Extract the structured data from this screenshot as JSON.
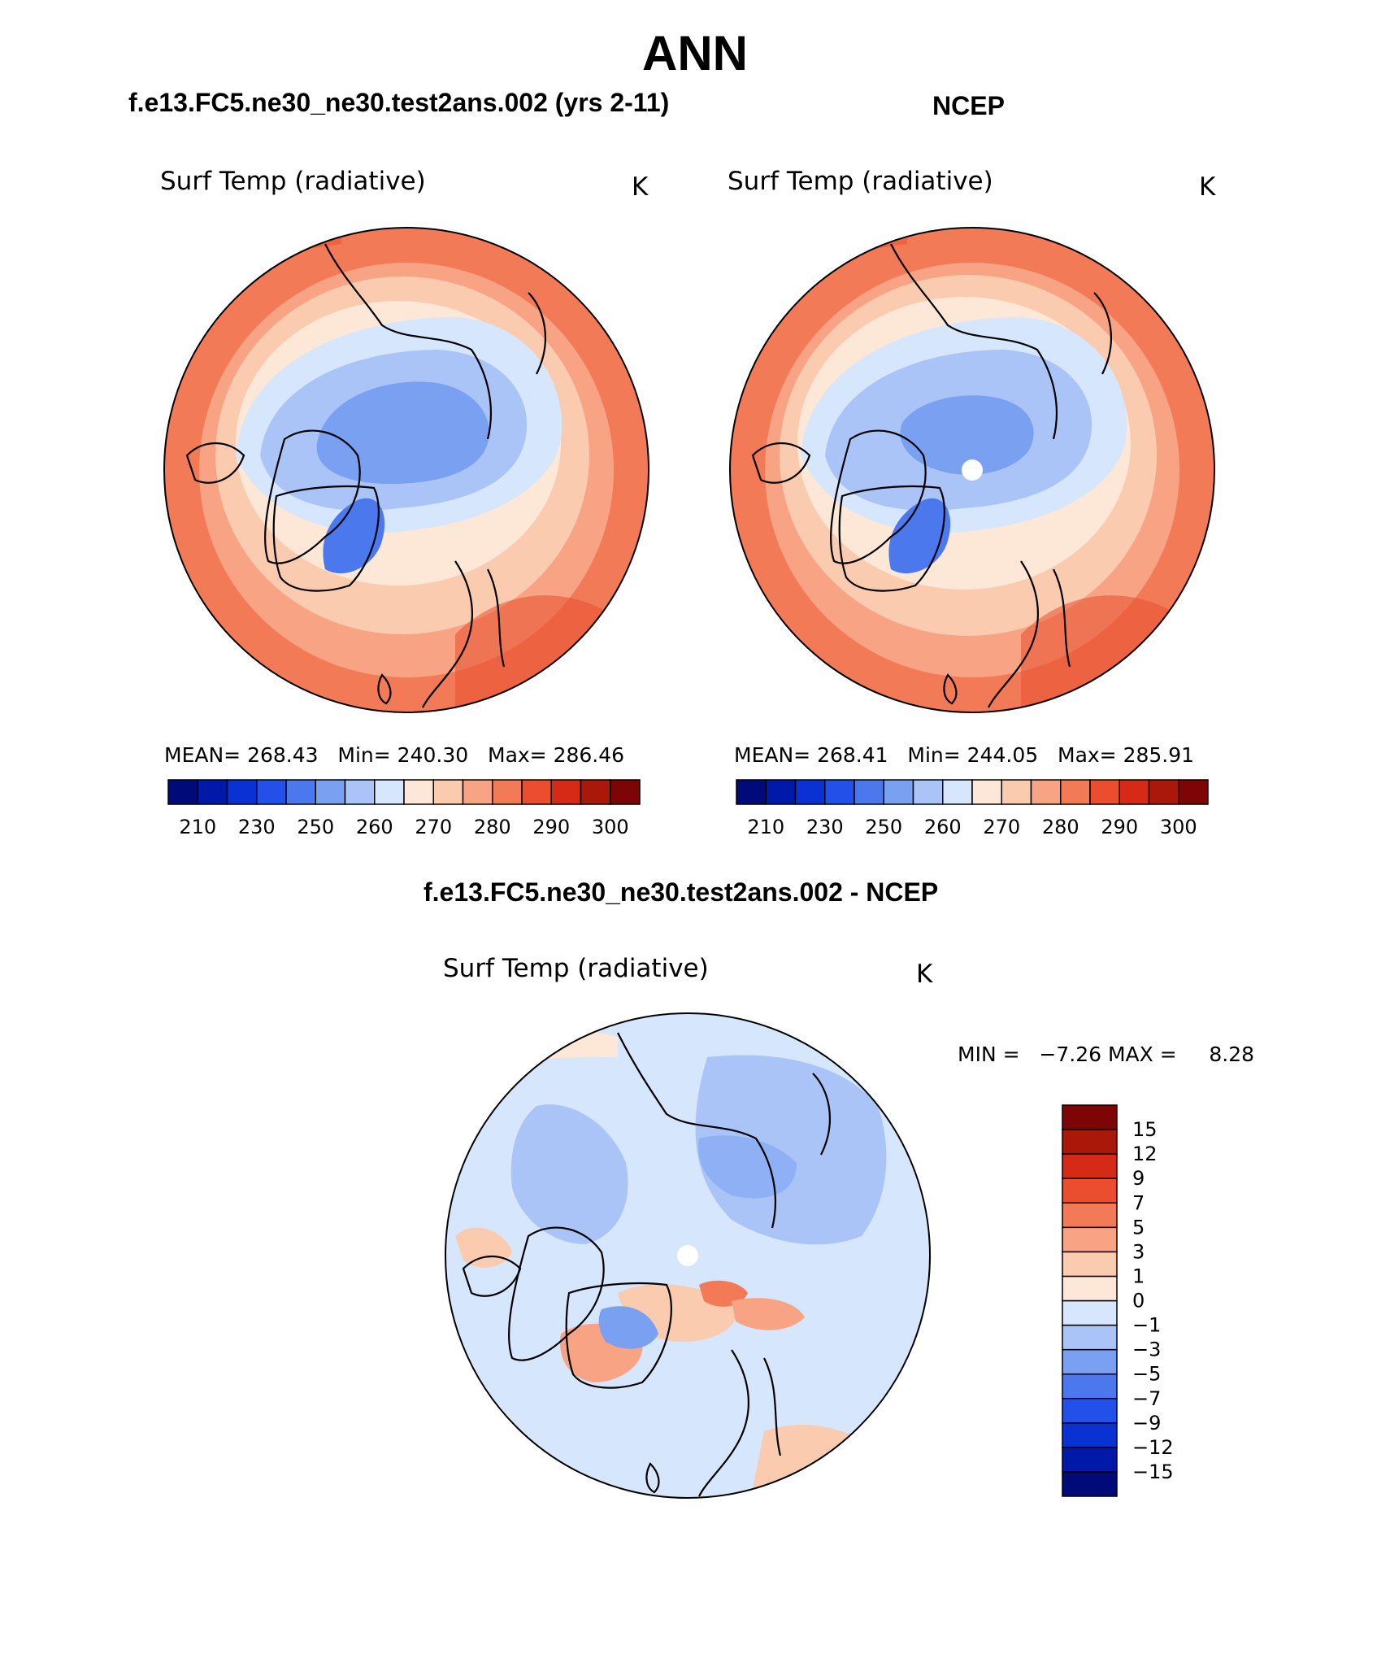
{
  "title": "ANN",
  "panels": [
    {
      "case": "f.e13.FC5.ne30_ne30.test2ans.002 (yrs 2-11)",
      "variable": "Surf Temp (radiative)",
      "units": "K",
      "stats": {
        "mean_label": "MEAN=",
        "mean": "268.43",
        "min_label": "Min=",
        "min": "240.30",
        "max_label": "Max=",
        "max": "286.46"
      }
    },
    {
      "case": "NCEP",
      "variable": "Surf Temp (radiative)",
      "units": "K",
      "stats": {
        "mean_label": "MEAN=",
        "mean": "268.41",
        "min_label": "Min=",
        "min": "244.05",
        "max_label": "Max=",
        "max": "285.91"
      }
    }
  ],
  "diff_panel": {
    "case": "f.e13.FC5.ne30_ne30.test2ans.002 - NCEP",
    "variable": "Surf Temp (radiative)",
    "units": "K",
    "min_label": "MIN =",
    "min": "−7.26",
    "max_label": "MAX =",
    "max": "8.28"
  },
  "abs_colorbar": {
    "colors": [
      "#000a78",
      "#0019a8",
      "#0a32d2",
      "#2350e8",
      "#4c78ee",
      "#7aa0f2",
      "#aac4f8",
      "#d6e6fc",
      "#fde7d7",
      "#fbcbb0",
      "#f7a384",
      "#f27a57",
      "#ea4e2e",
      "#d52a16",
      "#aa180a",
      "#7d0505"
    ],
    "tick_labels": [
      "210",
      "230",
      "250",
      "260",
      "270",
      "280",
      "290",
      "300"
    ]
  },
  "diff_colorbar": {
    "colors": [
      "#000a78",
      "#0019a8",
      "#0a32d2",
      "#2350e8",
      "#4c78ee",
      "#7aa0f2",
      "#aac4f8",
      "#d6e6fc",
      "#fde7d7",
      "#fbcbb0",
      "#f7a384",
      "#f27a57",
      "#ea4e2e",
      "#d52a16",
      "#aa180a",
      "#7d0505"
    ],
    "tick_labels": [
      "15",
      "12",
      "9",
      "7",
      "5",
      "3",
      "1",
      "0",
      "−1",
      "−3",
      "−5",
      "−7",
      "−9",
      "−12",
      "−15"
    ]
  }
}
